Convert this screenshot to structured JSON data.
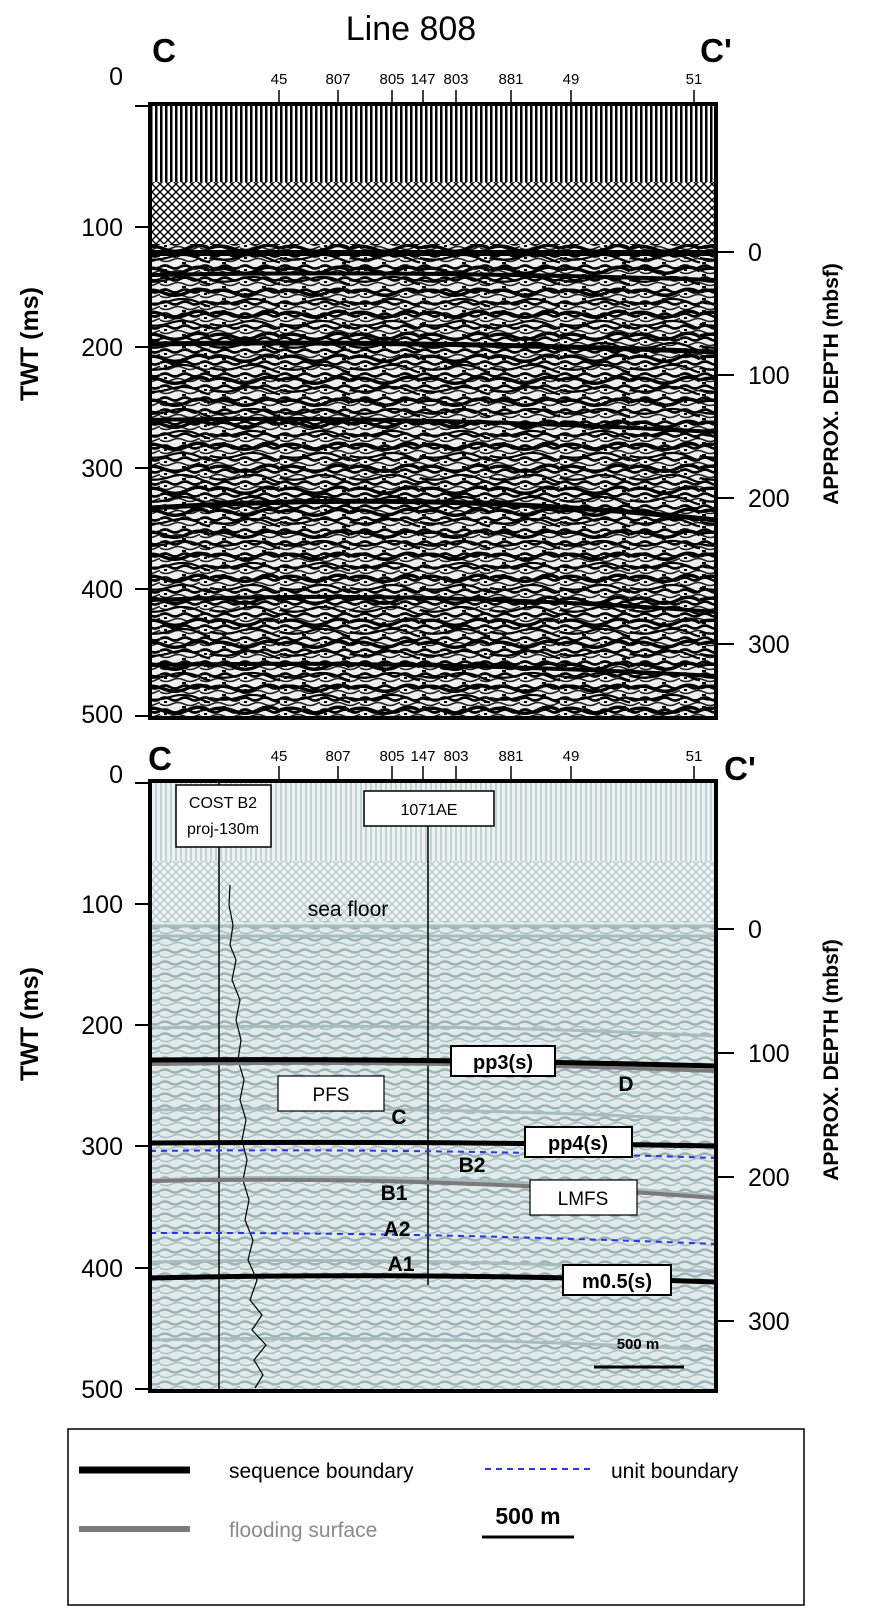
{
  "title": "Line 808",
  "endpoints": {
    "left": "C",
    "right": "C'"
  },
  "crosslines": [
    "45",
    "807",
    "805",
    "147",
    "803",
    "881",
    "49",
    "51"
  ],
  "axes": {
    "twt_label": "TWT (ms)",
    "twt_ticks": [
      "0",
      "100",
      "200",
      "300",
      "400",
      "500"
    ],
    "depth_label": "APPROX. DEPTH (mbsf)",
    "depth_ticks": [
      "0",
      "100",
      "200",
      "300"
    ]
  },
  "interpreted": {
    "wells": [
      {
        "name": "COST B2",
        "note": "proj-130m"
      },
      {
        "name": "1071AE"
      }
    ],
    "sea_floor": "sea floor",
    "horizons": [
      {
        "label": "pp3(s)",
        "kind": "sequence boundary"
      },
      {
        "label": "pp4(s)",
        "kind": "sequence boundary"
      },
      {
        "label": "m0.5(s)",
        "kind": "sequence boundary"
      },
      {
        "label": "PFS",
        "kind": "flooding surface"
      },
      {
        "label": "LMFS",
        "kind": "flooding surface"
      }
    ],
    "units": [
      "D",
      "C",
      "B2",
      "B1",
      "A2",
      "A1"
    ],
    "scale": "500 m"
  },
  "legend": {
    "sequence_boundary": "sequence boundary",
    "unit_boundary": "unit boundary",
    "flooding_surface": "flooding surface",
    "scale": "500 m"
  },
  "colors": {
    "seismic_dark": "#000000",
    "interp_bg": "#dde8ea",
    "interp_stripe": "#9fb5b8",
    "unit_boundary": "#2b35e0",
    "flooding_surface": "#7b7b7b"
  }
}
